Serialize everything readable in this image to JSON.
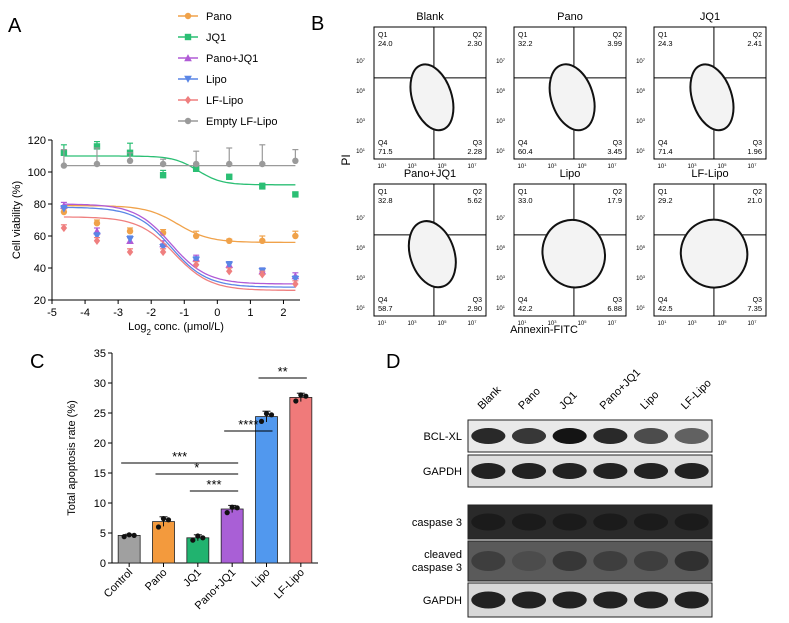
{
  "panel_labels": [
    "A",
    "B",
    "C",
    "D"
  ],
  "chart_data": [
    {
      "panel": "A",
      "type": "line",
      "title": "",
      "xlabel": "Log",
      "xlabel_sub": "2",
      "xlabel_rest": " conc. (μmol/L)",
      "ylabel": "Cell viability (%)",
      "xlim": [
        -5,
        2.5
      ],
      "ylim": [
        20,
        120
      ],
      "xticks": [
        -5,
        -4,
        -3,
        -2,
        -1,
        0,
        1,
        2
      ],
      "yticks": [
        20,
        40,
        60,
        80,
        100,
        120
      ],
      "x": [
        -4.64,
        -3.64,
        -2.64,
        -1.64,
        -0.64,
        0.36,
        1.36,
        2.36
      ],
      "series": [
        {
          "name": "Pano",
          "color": "#f0a24a",
          "marker": "circle",
          "values": [
            75,
            68,
            63,
            62,
            60,
            57,
            57,
            60
          ],
          "errors": [
            2,
            2,
            2,
            2,
            3,
            1,
            3,
            3
          ],
          "curve": {
            "top": 79,
            "bottom": 56,
            "ec50": -1.2,
            "hill": 0.9
          }
        },
        {
          "name": "JQ1",
          "color": "#2bbf74",
          "marker": "square",
          "values": [
            112,
            116,
            112,
            98,
            102,
            97,
            91,
            86
          ],
          "errors": [
            5,
            3,
            6,
            3,
            3,
            1,
            2,
            1
          ],
          "curve": {
            "top": 110,
            "bottom": 92,
            "ec50": -0.6,
            "hill": 1.2
          }
        },
        {
          "name": "Pano+JQ1",
          "color": "#b05bd6",
          "marker": "triangle",
          "values": [
            79,
            63,
            57,
            55,
            46,
            42,
            38,
            35
          ],
          "errors": [
            2,
            2,
            2,
            2,
            2,
            2,
            2,
            2
          ],
          "curve": {
            "top": 80,
            "bottom": 30,
            "ec50": -1.4,
            "hill": 0.8
          }
        },
        {
          "name": "Lipo",
          "color": "#5a86e6",
          "marker": "triangle-down",
          "values": [
            77,
            60,
            58,
            53,
            45,
            42,
            38,
            33
          ],
          "errors": [
            2,
            2,
            2,
            2,
            2,
            2,
            2,
            2
          ],
          "curve": {
            "top": 78,
            "bottom": 28,
            "ec50": -1.4,
            "hill": 0.8
          }
        },
        {
          "name": "LF-Lipo",
          "color": "#ef7f7f",
          "marker": "diamond",
          "values": [
            65,
            57,
            50,
            50,
            42,
            38,
            36,
            30
          ],
          "errors": [
            2,
            2,
            2,
            2,
            2,
            2,
            2,
            2
          ],
          "curve": {
            "top": 72,
            "bottom": 26,
            "ec50": -1.3,
            "hill": 0.8
          }
        },
        {
          "name": "Empty LF-Lipo",
          "color": "#9a9a9a",
          "marker": "circle",
          "values": [
            104,
            105,
            107,
            105,
            105,
            105,
            105,
            107
          ],
          "errors": [
            10,
            10,
            5,
            3,
            8,
            10,
            12,
            7
          ],
          "curve": {
            "top": 104,
            "bottom": 104,
            "ec50": 0,
            "hill": 1
          }
        }
      ]
    },
    {
      "panel": "C",
      "type": "bar",
      "title": "",
      "xlabel": "",
      "ylabel": "Total apoptosis rate (%)",
      "ylim": [
        0,
        35
      ],
      "yticks": [
        0,
        5,
        10,
        15,
        20,
        25,
        30,
        35
      ],
      "categories": [
        "Control",
        "Pano",
        "JQ1",
        "Pano+JQ1",
        "Lipo",
        "LF-Lipo"
      ],
      "values": [
        4.6,
        6.9,
        4.2,
        9.0,
        24.4,
        27.6
      ],
      "errors": [
        0.2,
        0.8,
        0.5,
        0.6,
        0.9,
        0.7
      ],
      "points": [
        [
          4.4,
          4.7,
          4.6
        ],
        [
          6.0,
          7.4,
          7.2
        ],
        [
          3.8,
          4.5,
          4.2
        ],
        [
          8.4,
          9.3,
          9.2
        ],
        [
          23.6,
          24.9,
          24.7
        ],
        [
          27.0,
          28.0,
          27.8
        ]
      ],
      "colors": [
        "#a0a0a0",
        "#f39a3d",
        "#21b36f",
        "#a95fd6",
        "#5198ee",
        "#f07a7a"
      ],
      "significance": [
        {
          "from": 0,
          "to": 3,
          "label": "***"
        },
        {
          "from": 1,
          "to": 3,
          "label": "*"
        },
        {
          "from": 2,
          "to": 3,
          "label": "***"
        },
        {
          "from": 3,
          "to": 4,
          "label": "****"
        },
        {
          "from": 4,
          "to": 5,
          "label": "**"
        }
      ]
    }
  ],
  "flow": {
    "ylabel": "PI",
    "xlabel": "Annexin-FITC",
    "panels": [
      {
        "name": "Blank",
        "q1": "24.0",
        "q2": "2.30",
        "q3": "2.28",
        "q4": "71.5"
      },
      {
        "name": "Pano",
        "q1": "32.2",
        "q2": "3.99",
        "q3": "3.45",
        "q4": "60.4"
      },
      {
        "name": "JQ1",
        "q1": "24.3",
        "q2": "2.41",
        "q3": "1.96",
        "q4": "71.4"
      },
      {
        "name": "Pano+JQ1",
        "q1": "32.8",
        "q2": "5.62",
        "q3": "2.90",
        "q4": "58.7"
      },
      {
        "name": "Lipo",
        "q1": "33.0",
        "q2": "17.9",
        "q3": "6.88",
        "q4": "42.2"
      },
      {
        "name": "LF-Lipo",
        "q1": "29.2",
        "q2": "21.0",
        "q3": "7.35",
        "q4": "42.5"
      }
    ],
    "quadrant_labels": [
      "Q1",
      "Q2",
      "Q3",
      "Q4"
    ],
    "tick_base": "10",
    "tick_exps": [
      "1",
      "3",
      "5",
      "7"
    ]
  },
  "western": {
    "lanes": [
      "Blank",
      "Pano",
      "JQ1",
      "Pano+JQ1",
      "Lipo",
      "LF-Lipo"
    ],
    "blots": [
      {
        "label": "BCL-XL",
        "label2": "",
        "intensity": [
          0.85,
          0.75,
          1.0,
          0.85,
          0.6,
          0.45
        ],
        "bg": "#e9e9e9"
      },
      {
        "label": "GAPDH",
        "label2": "",
        "intensity": [
          0.9,
          0.9,
          0.9,
          0.9,
          0.9,
          0.9
        ],
        "bg": "#dedede"
      },
      {
        "label": "caspase 3",
        "label2": "",
        "intensity": [
          0.95,
          0.95,
          0.95,
          0.95,
          0.95,
          0.95
        ],
        "bg": "#2a2a2a"
      },
      {
        "label": "cleaved",
        "label2": "caspase 3",
        "intensity": [
          0.7,
          0.6,
          0.75,
          0.7,
          0.7,
          0.8
        ],
        "bg": "#5a5a5a"
      },
      {
        "label": "GAPDH",
        "label2": "",
        "intensity": [
          0.9,
          0.9,
          0.9,
          0.9,
          0.9,
          0.9
        ],
        "bg": "#d8d8d8"
      }
    ]
  }
}
